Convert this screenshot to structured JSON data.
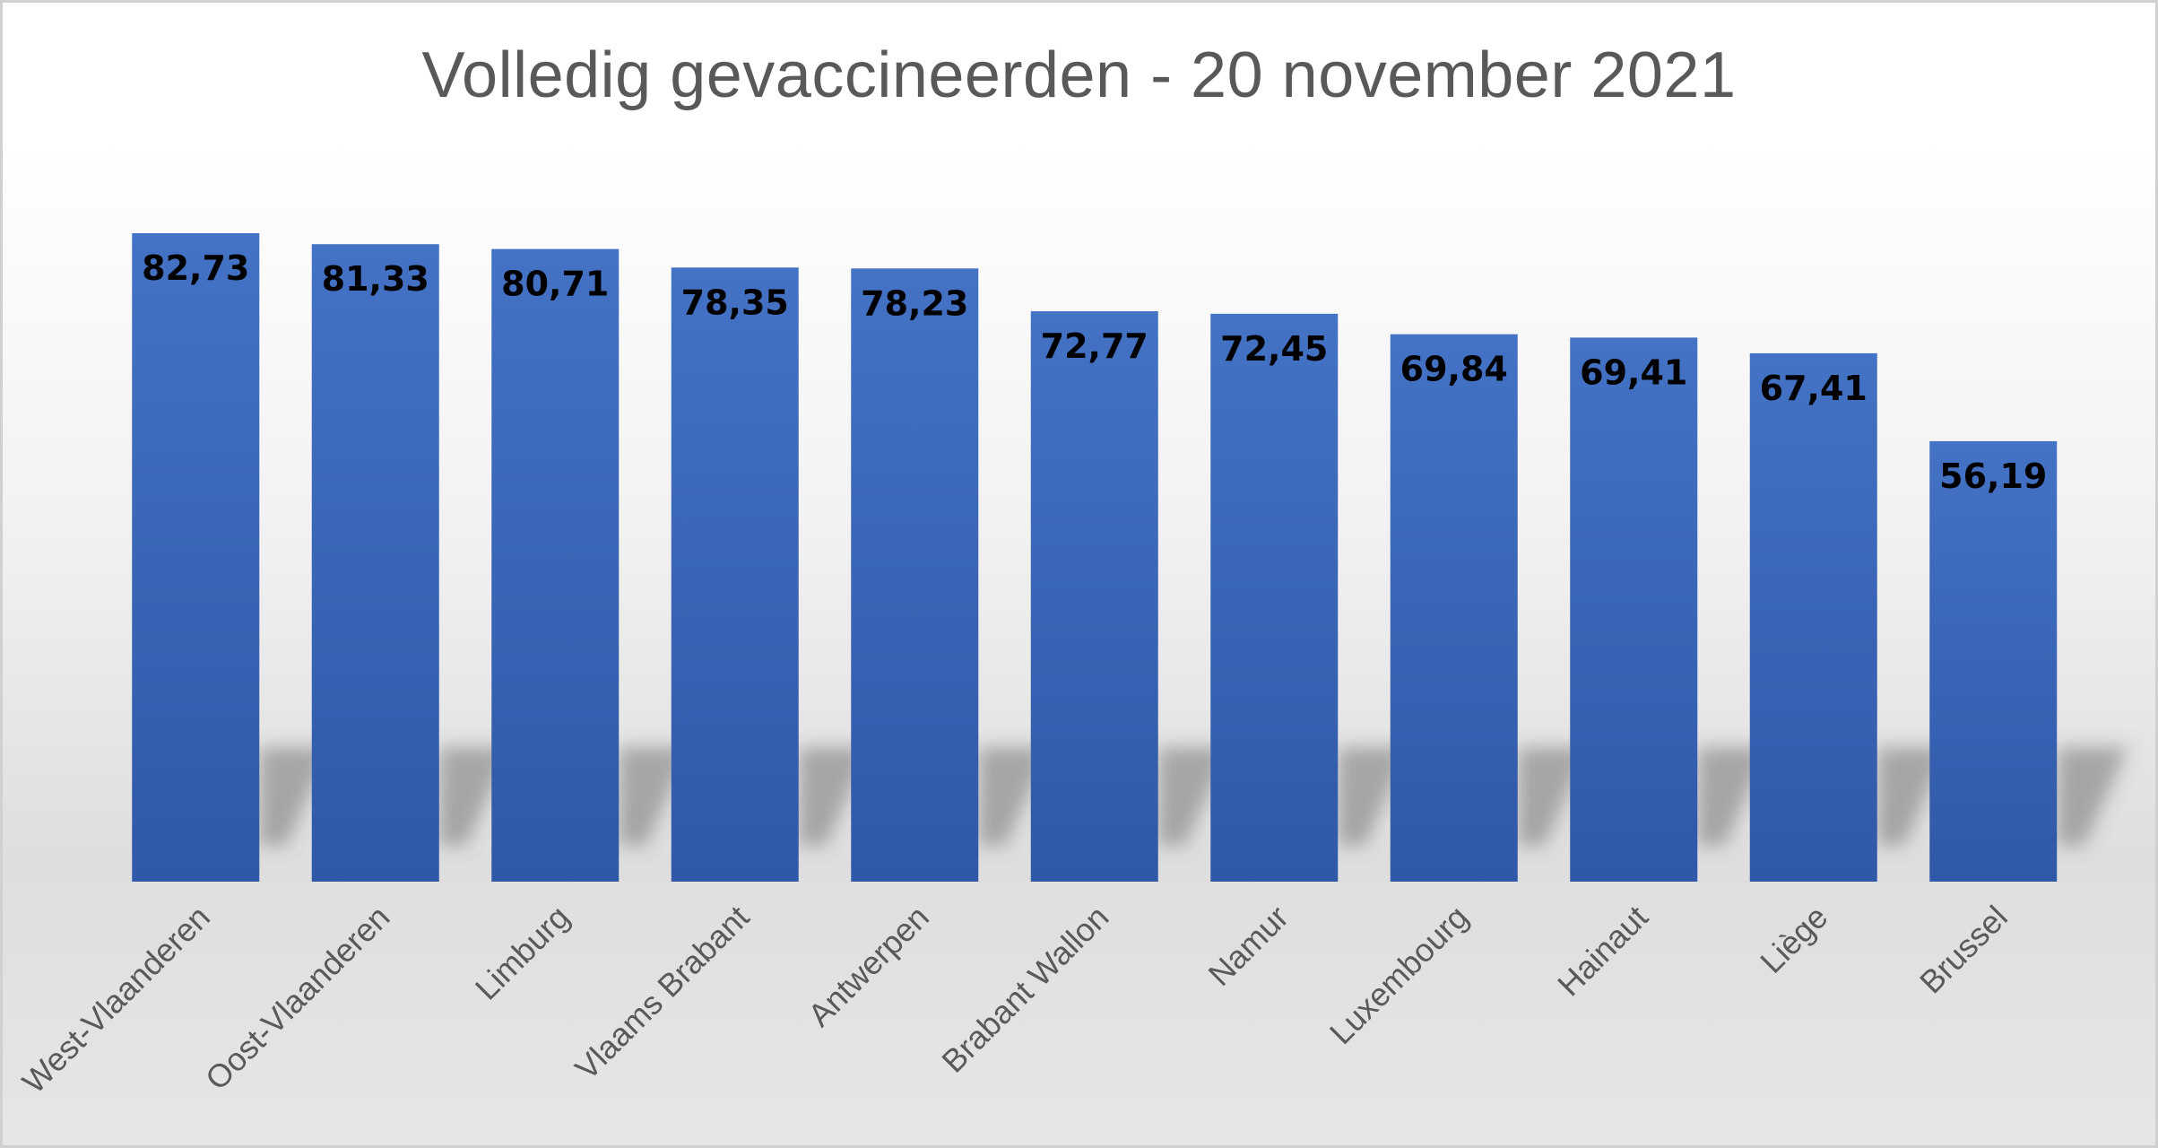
{
  "chart_data": {
    "type": "bar",
    "title": "Volledig gevaccineerden - 20 november 2021",
    "categories": [
      "West-Vlaanderen",
      "Oost-Vlaanderen",
      "Limburg",
      "Vlaams Brabant",
      "Antwerpen",
      "Brabant Wallon",
      "Namur",
      "Luxembourg",
      "Hainaut",
      "Liège",
      "Brussel"
    ],
    "values": [
      82.73,
      81.33,
      80.71,
      78.35,
      78.23,
      72.77,
      72.45,
      69.84,
      69.41,
      67.41,
      56.19
    ],
    "data_labels": [
      "82,73",
      "81,33",
      "80,71",
      "78,35",
      "78,23",
      "72,77",
      "72,45",
      "69,84",
      "69,41",
      "67,41",
      "56,19"
    ],
    "xlabel": "",
    "ylabel": "",
    "ylim": [
      0,
      82.73
    ],
    "grid": false,
    "legend": "none",
    "colors": {
      "bar_top": "#4472c4",
      "bar_bottom": "#3058a8",
      "title": "#595959",
      "category_label": "#595959",
      "data_label": "#000000"
    }
  }
}
